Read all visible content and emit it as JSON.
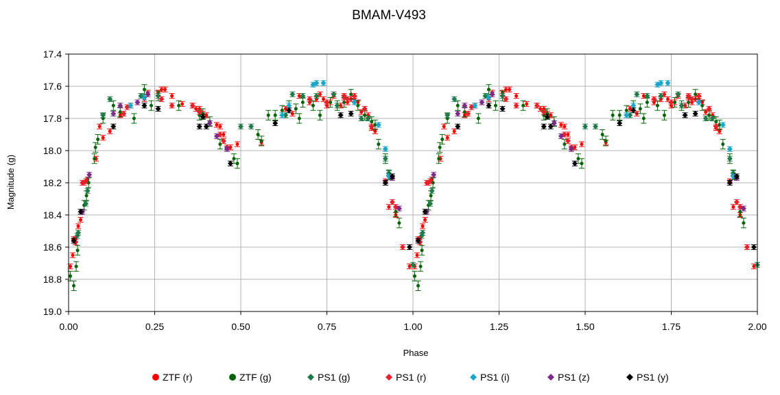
{
  "chart_data": {
    "type": "scatter",
    "title": "BMAM-V493",
    "xlabel": "Phase",
    "ylabel": "Magnitude (g)",
    "xlim": [
      0.0,
      2.0
    ],
    "ylim": [
      17.4,
      19.0
    ],
    "y_inverted": true,
    "grid": true,
    "legend_position": "bottom",
    "x_ticks": [
      0.0,
      0.25,
      0.5,
      0.75,
      1.0,
      1.25,
      1.5,
      1.75,
      2.0
    ],
    "x_tick_labels": [
      "0.00",
      "0.25",
      "0.50",
      "0.75",
      "1.00",
      "1.25",
      "1.50",
      "1.75",
      "2.00"
    ],
    "y_ticks": [
      17.4,
      17.6,
      17.8,
      18.0,
      18.2,
      18.4,
      18.6,
      18.8,
      19.0
    ],
    "y_tick_labels": [
      "17.4",
      "17.6",
      "17.8",
      "18.0",
      "18.2",
      "18.4",
      "18.6",
      "18.8",
      "19.0"
    ],
    "phase_repeat": 1.0,
    "series": [
      {
        "name": "ZTF (r)",
        "color": "#ff0000",
        "marker": "dot",
        "err": 0.015,
        "x": [
          0.005,
          0.012,
          0.02,
          0.028,
          0.035,
          0.045,
          0.055,
          0.08,
          0.09,
          0.1,
          0.12,
          0.15,
          0.18,
          0.2,
          0.22,
          0.23,
          0.26,
          0.27,
          0.28,
          0.3,
          0.33,
          0.36,
          0.37,
          0.38,
          0.39,
          0.4,
          0.43,
          0.44,
          0.45,
          0.47,
          0.49,
          0.56,
          0.63,
          0.65,
          0.67,
          0.7,
          0.72,
          0.73,
          0.74,
          0.75,
          0.76,
          0.77,
          0.79,
          0.8,
          0.81,
          0.82,
          0.83,
          0.84,
          0.85,
          0.87,
          0.88,
          0.89,
          0.93,
          0.95,
          0.97,
          0.99
        ],
        "y": [
          18.72,
          18.65,
          18.55,
          18.47,
          18.43,
          18.2,
          18.18,
          18.05,
          17.85,
          17.92,
          17.88,
          17.78,
          17.72,
          17.7,
          17.68,
          17.64,
          17.64,
          17.62,
          17.62,
          17.66,
          17.71,
          17.72,
          17.74,
          17.74,
          17.77,
          17.78,
          17.84,
          17.85,
          17.9,
          17.98,
          17.96,
          17.95,
          17.74,
          17.77,
          17.66,
          17.7,
          17.68,
          17.65,
          17.68,
          17.72,
          17.7,
          17.66,
          17.72,
          17.67,
          17.7,
          17.68,
          17.68,
          17.7,
          17.76,
          17.78,
          17.86,
          17.88,
          18.35,
          18.4,
          18.6,
          18.72
        ]
      },
      {
        "name": "ZTF (g)",
        "color": "#006400",
        "marker": "dot",
        "err": 0.03,
        "x": [
          0.005,
          0.015,
          0.022,
          0.026,
          0.045,
          0.052,
          0.058,
          0.075,
          0.078,
          0.085,
          0.1,
          0.13,
          0.15,
          0.19,
          0.22,
          0.24,
          0.26,
          0.32,
          0.38,
          0.39,
          0.41,
          0.44,
          0.48,
          0.49,
          0.55,
          0.56,
          0.58,
          0.6,
          0.62,
          0.64,
          0.66,
          0.67,
          0.68,
          0.71,
          0.73,
          0.76,
          0.78,
          0.8,
          0.82,
          0.84,
          0.86,
          0.88,
          0.89,
          0.9,
          0.92,
          0.93,
          0.95,
          0.96
        ],
        "y": [
          18.78,
          18.84,
          18.72,
          18.62,
          18.34,
          18.28,
          18.2,
          18.05,
          17.98,
          17.93,
          17.8,
          17.72,
          17.76,
          17.8,
          17.62,
          17.72,
          17.66,
          17.72,
          17.78,
          17.77,
          17.82,
          17.96,
          18.05,
          18.08,
          17.9,
          17.94,
          17.78,
          17.78,
          17.75,
          17.72,
          17.74,
          17.8,
          17.7,
          17.72,
          17.78,
          17.7,
          17.72,
          17.7,
          17.65,
          17.72,
          17.78,
          17.82,
          17.84,
          17.96,
          18.05,
          18.15,
          18.38,
          18.45
        ]
      },
      {
        "name": "PS1 (g)",
        "color": "#1f7a4a",
        "marker": "diamond",
        "err": 0.015,
        "x": [
          0.025,
          0.028,
          0.05,
          0.055,
          0.1,
          0.12,
          0.21,
          0.26,
          0.5,
          0.53,
          0.63,
          0.65,
          0.68,
          0.72,
          0.77,
          0.78,
          0.85,
          0.87,
          0.92,
          0.93,
          1.0
        ],
        "y": [
          18.53,
          18.51,
          18.33,
          18.25,
          17.78,
          17.68,
          17.66,
          17.66,
          17.85,
          17.85,
          17.78,
          17.65,
          17.66,
          17.66,
          17.65,
          17.72,
          17.8,
          17.8,
          18.05,
          18.14,
          18.71
        ]
      },
      {
        "name": "PS1 (r)",
        "color": "#e8202a",
        "marker": "diamond",
        "err": 0.015,
        "x": [
          0.015,
          0.02,
          0.04,
          0.05,
          0.16,
          0.17,
          0.27,
          0.3,
          0.36,
          0.38,
          0.44,
          0.45,
          0.46,
          0.7,
          0.75,
          0.8,
          0.81,
          0.83,
          0.86,
          0.88,
          0.92,
          0.94,
          0.95,
          0.97
        ],
        "y": [
          18.55,
          18.57,
          18.2,
          18.19,
          17.77,
          17.73,
          17.68,
          17.72,
          17.72,
          17.76,
          17.9,
          17.94,
          17.98,
          17.68,
          17.7,
          17.66,
          17.68,
          17.66,
          17.74,
          17.85,
          18.19,
          18.32,
          18.35,
          18.6
        ]
      },
      {
        "name": "PS1 (i)",
        "color": "#19a6c8",
        "marker": "diamond",
        "err": 0.015,
        "x": [
          0.18,
          0.22,
          0.62,
          0.64,
          0.71,
          0.72,
          0.74,
          0.83,
          0.9,
          0.92,
          0.93
        ],
        "y": [
          17.72,
          17.67,
          17.78,
          17.72,
          17.59,
          17.58,
          17.58,
          17.7,
          17.84,
          17.99,
          18.16
        ]
      },
      {
        "name": "PS1 (z)",
        "color": "#7e2a8a",
        "marker": "diamond",
        "err": 0.015,
        "x": [
          0.04,
          0.06,
          0.13,
          0.15,
          0.2,
          0.23,
          0.41,
          0.43,
          0.46,
          0.94,
          0.96
        ],
        "y": [
          18.38,
          18.15,
          17.77,
          17.72,
          17.7,
          17.65,
          17.83,
          17.91,
          17.99,
          18.17,
          18.36
        ]
      },
      {
        "name": "PS1 (y)",
        "color": "#000000",
        "marker": "diamond",
        "err": 0.015,
        "x": [
          0.015,
          0.035,
          0.13,
          0.22,
          0.26,
          0.38,
          0.39,
          0.4,
          0.47,
          0.6,
          0.64,
          0.79,
          0.82,
          0.92,
          0.94,
          0.99
        ],
        "y": [
          18.56,
          18.38,
          17.85,
          17.72,
          17.74,
          17.85,
          17.79,
          17.85,
          18.08,
          17.83,
          17.75,
          17.78,
          17.77,
          18.2,
          18.16,
          18.6
        ]
      }
    ]
  }
}
